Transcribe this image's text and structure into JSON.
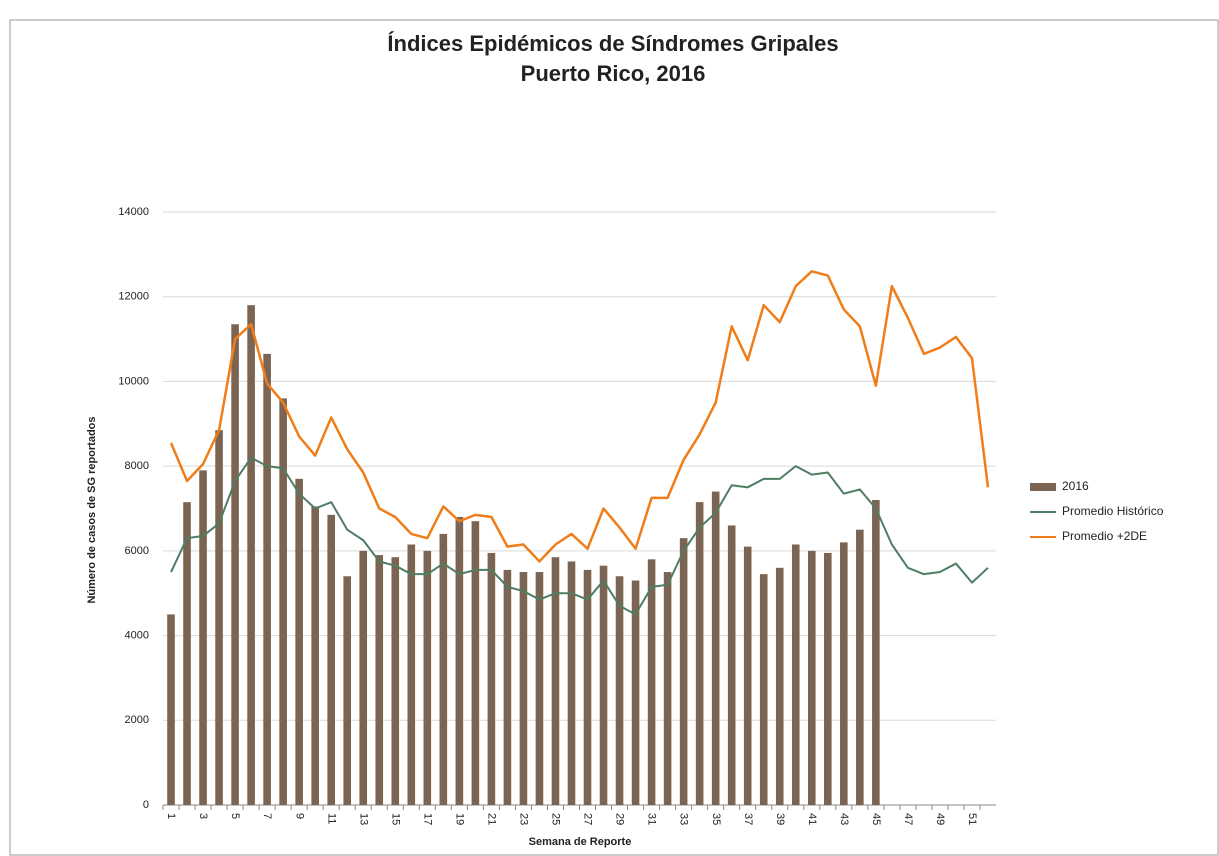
{
  "chart_data": {
    "type": "bar_line",
    "title": "Índices Epidémicos de Síndromes Gripales",
    "subtitle": "Puerto Rico, 2016",
    "x_label": "Semana de Reporte",
    "y_label": "Número de casos de  SG  reportados",
    "categories": [
      "1",
      null,
      "3",
      null,
      "5",
      null,
      "7",
      null,
      "9",
      null,
      "11",
      null,
      "13",
      null,
      "15",
      null,
      "17",
      null,
      "19",
      null,
      "21",
      null,
      "23",
      null,
      "25",
      null,
      "27",
      null,
      "29",
      null,
      "31",
      null,
      "33",
      null,
      "35",
      null,
      "37",
      null,
      "39",
      null,
      "41",
      null,
      "43",
      null,
      "45",
      null,
      "47",
      null,
      "49",
      null,
      "51",
      null
    ],
    "series": [
      {
        "name": "2016",
        "type": "bar",
        "color": "#7b6552",
        "values": [
          4500,
          7150,
          7900,
          8850,
          11350,
          11800,
          10650,
          9600,
          7700,
          7050,
          6850,
          5400,
          6000,
          5900,
          5850,
          6150,
          6000,
          6400,
          6800,
          6700,
          5950,
          5550,
          5500,
          5500,
          5850,
          5750,
          5550,
          5650,
          5400,
          5300,
          5800,
          5500,
          6300,
          7150,
          7400,
          6600,
          6100,
          5450,
          5600,
          6150,
          6000,
          5950,
          6200,
          6500,
          7200,
          null,
          null,
          null,
          null,
          null,
          null,
          null
        ]
      },
      {
        "name": "Promedio Histórico",
        "type": "line",
        "color": "#4e7d64",
        "values": [
          5500,
          6300,
          6350,
          6650,
          7650,
          8200,
          8000,
          7950,
          7350,
          7000,
          7150,
          6500,
          6250,
          5750,
          5650,
          5450,
          5450,
          5700,
          5450,
          5550,
          5550,
          5150,
          5050,
          4850,
          5000,
          5000,
          4850,
          5300,
          4700,
          4500,
          5150,
          5200,
          6000,
          6550,
          6900,
          7550,
          7500,
          7700,
          7700,
          8000,
          7800,
          7850,
          7350,
          7450,
          7000,
          6150,
          5600,
          5450,
          5500,
          5700,
          5250,
          5600
        ]
      },
      {
        "name": "Promedio +2DE",
        "type": "line",
        "color": "#f07d1a",
        "values": [
          8550,
          7650,
          8050,
          8850,
          11000,
          11350,
          9950,
          9500,
          8700,
          8250,
          9150,
          8400,
          7850,
          7000,
          6800,
          6400,
          6300,
          7050,
          6700,
          6850,
          6800,
          6100,
          6150,
          5750,
          6150,
          6400,
          6050,
          7000,
          6550,
          6050,
          7250,
          7250,
          8150,
          8750,
          9500,
          11300,
          10500,
          11800,
          11400,
          12250,
          12600,
          12500,
          11700,
          11300,
          9900,
          12250,
          11500,
          10650,
          10800,
          11050,
          10550,
          7500
        ]
      }
    ],
    "ylim": [
      0,
      14000
    ],
    "yticks": [
      0,
      2000,
      4000,
      6000,
      8000,
      10000,
      12000,
      14000
    ],
    "grid": true,
    "legend": "right"
  }
}
